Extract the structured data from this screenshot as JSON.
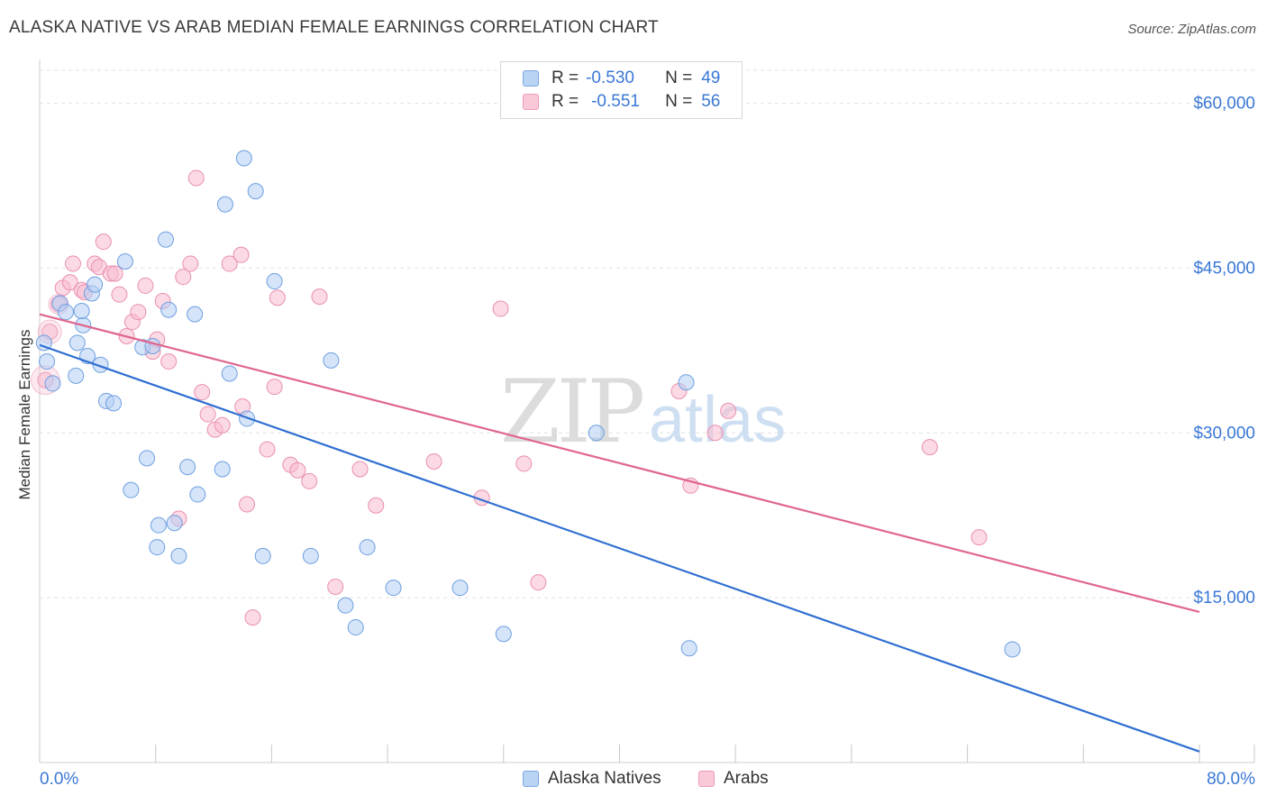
{
  "title": "ALASKA NATIVE VS ARAB MEDIAN FEMALE EARNINGS CORRELATION CHART",
  "source": "Source: ZipAtlas.com",
  "watermark": {
    "zip": "ZIP",
    "atlas": "atlas"
  },
  "legend": {
    "r_label": "R =",
    "n_label": "N =",
    "series": [
      {
        "name": "Alaska Natives",
        "r": "-0.530",
        "n": "49",
        "color": "#a9c9f0",
        "stroke": "#6d9fe0"
      },
      {
        "name": "Arabs",
        "r": "-0.551",
        "n": "56",
        "color": "#f7bfd0",
        "stroke": "#e98fae"
      }
    ]
  },
  "colors": {
    "blue_line": "#2f6fd1",
    "pink_line": "#e0668f",
    "axis_text": "#3a78d6",
    "grid": "#e2e2e2"
  },
  "chart_data": {
    "type": "scatter",
    "title": "ALASKA NATIVE VS ARAB MEDIAN FEMALE EARNINGS CORRELATION CHART",
    "xlabel": "",
    "ylabel": "Median Female Earnings",
    "xlim": [
      0,
      80
    ],
    "ylim": [
      0,
      63000
    ],
    "x_tick_labels": [
      "0.0%",
      "80.0%"
    ],
    "y_ticks": [
      15000,
      30000,
      45000,
      60000
    ],
    "y_tick_labels": [
      "$15,000",
      "$30,000",
      "$45,000",
      "$60,000"
    ],
    "grid": true,
    "legend_position": "top-center",
    "series": [
      {
        "name": "Alaska Natives",
        "regression": {
          "x": [
            0,
            80
          ],
          "y": [
            38000,
            1000
          ]
        },
        "points": [
          [
            0.3,
            38200
          ],
          [
            0.5,
            36500
          ],
          [
            0.9,
            34500
          ],
          [
            1.4,
            41800
          ],
          [
            1.8,
            41000
          ],
          [
            2.5,
            35200
          ],
          [
            2.6,
            38200
          ],
          [
            3.0,
            39800
          ],
          [
            2.9,
            41100
          ],
          [
            3.3,
            37000
          ],
          [
            3.6,
            42700
          ],
          [
            3.8,
            43500
          ],
          [
            4.2,
            36200
          ],
          [
            4.6,
            32900
          ],
          [
            5.1,
            32700
          ],
          [
            5.9,
            45600
          ],
          [
            6.3,
            24800
          ],
          [
            7.1,
            37800
          ],
          [
            7.4,
            27700
          ],
          [
            7.8,
            37900
          ],
          [
            8.1,
            19600
          ],
          [
            8.2,
            21600
          ],
          [
            8.7,
            47600
          ],
          [
            8.9,
            41200
          ],
          [
            9.3,
            21800
          ],
          [
            9.6,
            18800
          ],
          [
            10.2,
            26900
          ],
          [
            10.7,
            40800
          ],
          [
            10.9,
            24400
          ],
          [
            12.6,
            26700
          ],
          [
            12.8,
            50800
          ],
          [
            13.1,
            35400
          ],
          [
            14.1,
            55000
          ],
          [
            14.3,
            31300
          ],
          [
            14.9,
            52000
          ],
          [
            15.4,
            18800
          ],
          [
            16.2,
            43800
          ],
          [
            18.7,
            18800
          ],
          [
            20.1,
            36600
          ],
          [
            21.1,
            14300
          ],
          [
            21.8,
            12300
          ],
          [
            22.6,
            19600
          ],
          [
            24.4,
            15900
          ],
          [
            29.0,
            15900
          ],
          [
            32.0,
            11700
          ],
          [
            38.4,
            30000
          ],
          [
            44.6,
            34600
          ],
          [
            44.8,
            10400
          ],
          [
            67.1,
            10300
          ]
        ]
      },
      {
        "name": "Arabs",
        "regression": {
          "x": [
            0,
            80
          ],
          "y": [
            40800,
            13700
          ]
        },
        "points": [
          [
            0.4,
            34800
          ],
          [
            0.7,
            39200
          ],
          [
            1.3,
            41700
          ],
          [
            1.6,
            43200
          ],
          [
            2.1,
            43700
          ],
          [
            2.3,
            45400
          ],
          [
            2.9,
            43000
          ],
          [
            3.1,
            42800
          ],
          [
            3.8,
            45400
          ],
          [
            4.1,
            45100
          ],
          [
            4.4,
            47400
          ],
          [
            4.9,
            44500
          ],
          [
            5.2,
            44500
          ],
          [
            5.5,
            42600
          ],
          [
            6.0,
            38800
          ],
          [
            6.4,
            40100
          ],
          [
            6.8,
            41000
          ],
          [
            7.3,
            43400
          ],
          [
            7.8,
            37400
          ],
          [
            8.1,
            38500
          ],
          [
            8.5,
            42000
          ],
          [
            8.9,
            36500
          ],
          [
            9.6,
            22200
          ],
          [
            9.9,
            44200
          ],
          [
            10.4,
            45400
          ],
          [
            10.8,
            53200
          ],
          [
            11.2,
            33700
          ],
          [
            11.6,
            31700
          ],
          [
            12.1,
            30300
          ],
          [
            12.6,
            30700
          ],
          [
            13.1,
            45400
          ],
          [
            13.9,
            46200
          ],
          [
            14.0,
            32400
          ],
          [
            14.3,
            23500
          ],
          [
            14.7,
            13200
          ],
          [
            15.7,
            28500
          ],
          [
            16.2,
            34200
          ],
          [
            16.4,
            42300
          ],
          [
            17.3,
            27100
          ],
          [
            17.8,
            26600
          ],
          [
            18.6,
            25600
          ],
          [
            19.3,
            42400
          ],
          [
            20.4,
            16000
          ],
          [
            22.1,
            26700
          ],
          [
            23.2,
            23400
          ],
          [
            27.2,
            27400
          ],
          [
            30.5,
            24100
          ],
          [
            31.8,
            41300
          ],
          [
            33.4,
            27200
          ],
          [
            34.4,
            16400
          ],
          [
            44.1,
            33800
          ],
          [
            44.9,
            25200
          ],
          [
            46.6,
            30000
          ],
          [
            47.5,
            32000
          ],
          [
            61.4,
            28700
          ],
          [
            64.8,
            20500
          ]
        ]
      }
    ]
  }
}
